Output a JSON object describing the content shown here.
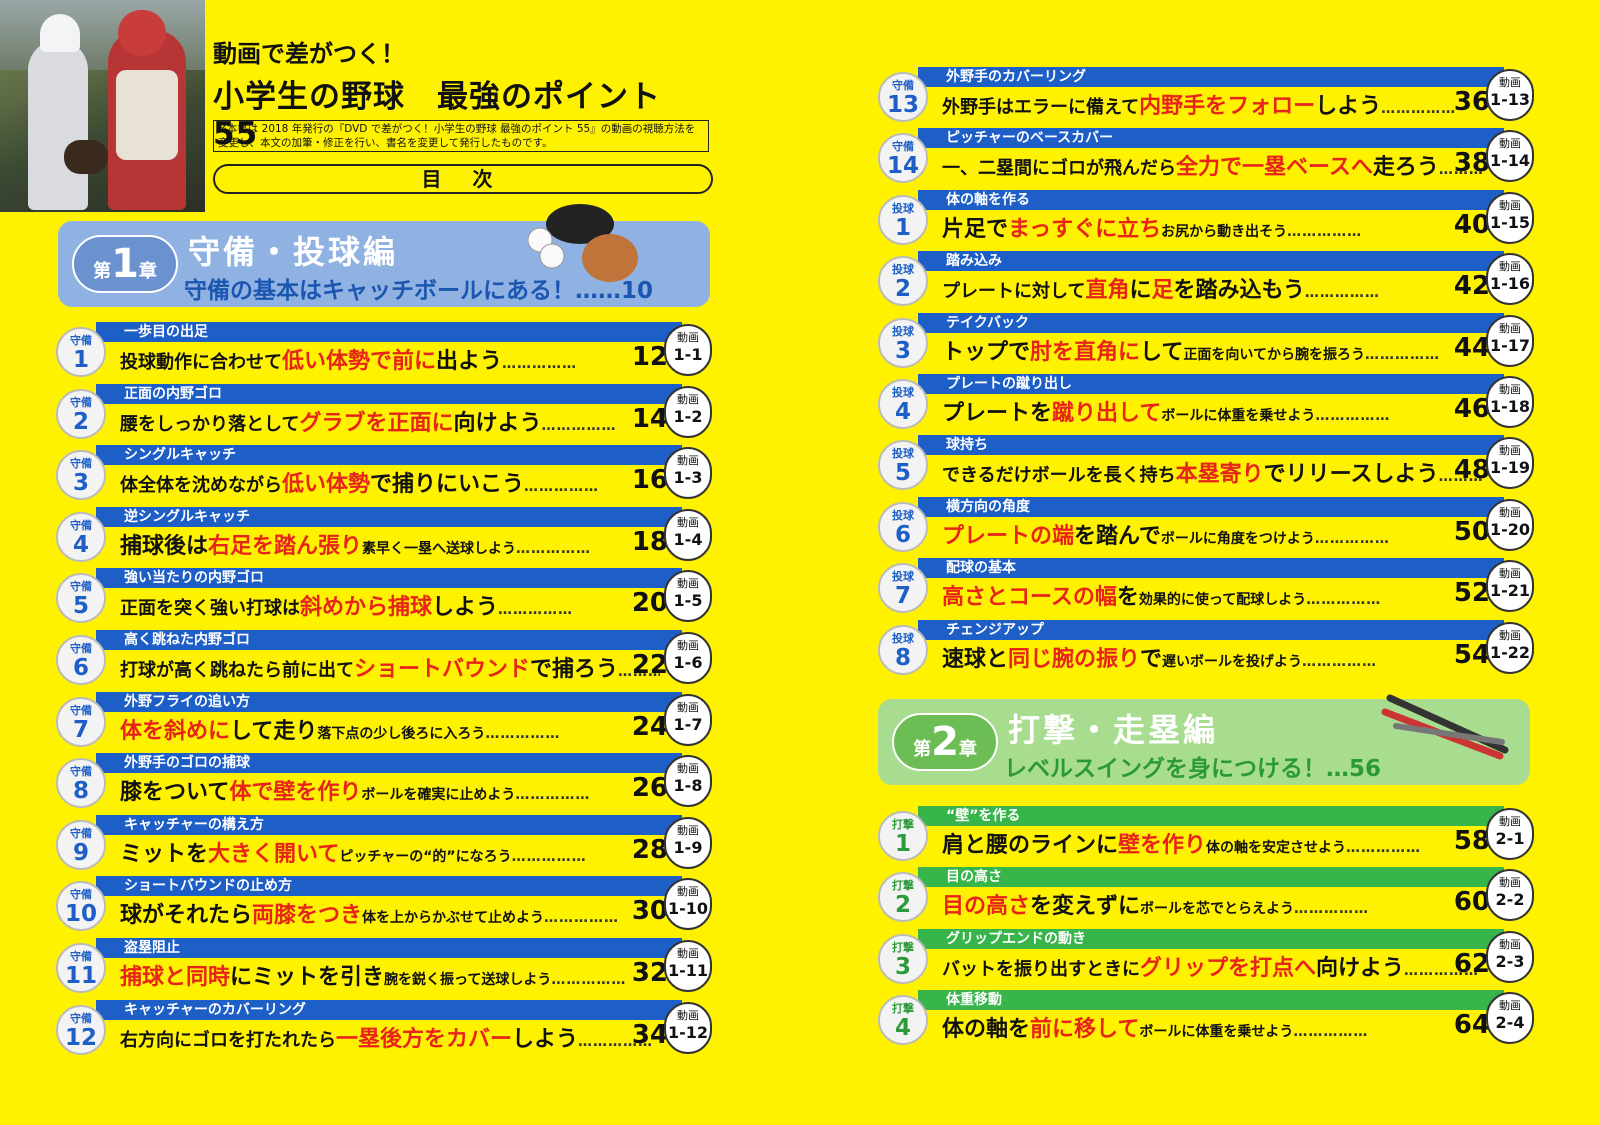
{
  "header": {
    "subtitle": "動画で差がつく！",
    "title": "小学生の野球　最強のポイント 55",
    "note": "※本書は 2018 年発行の『DVD で差がつく！小学生の野球 最強のポイント 55』の動画の視聴方法を変更し、本文の加筆・修正を行い、書名を変更して発行したものです。",
    "toc_label": "目 次"
  },
  "chapters": [
    {
      "badge_pre": "第",
      "badge_num": "1",
      "badge_post": "章",
      "title": "守備・投球編",
      "subtitle": "守備の基本はキャッチボールにある！……10"
    },
    {
      "badge_pre": "第",
      "badge_num": "2",
      "badge_post": "章",
      "title": "打撃・走塁編",
      "subtitle": "レベルスイングを身につける！…56"
    }
  ],
  "video_label": "動画",
  "left_entries": [
    {
      "cat": "守備",
      "num": "1",
      "head": "一歩目の出足",
      "parts": [
        "投球動作に合わせて",
        "低い体勢で前に",
        "出よう",
        "",
        "",
        "",
        ""
      ],
      "page": "12",
      "video": "1-1"
    },
    {
      "cat": "守備",
      "num": "2",
      "head": "正面の内野ゴロ",
      "parts": [
        "腰をしっかり落として",
        "グラブを正面に",
        "向けよう",
        "",
        "",
        "",
        ""
      ],
      "page": "14",
      "video": "1-2"
    },
    {
      "cat": "守備",
      "num": "3",
      "head": "シングルキャッチ",
      "parts": [
        "体全体を沈めながら",
        "低い体勢",
        "で捕りにいこう",
        "",
        "",
        "",
        ""
      ],
      "page": "16",
      "video": "1-3"
    },
    {
      "cat": "守備",
      "num": "4",
      "head": "逆シングルキャッチ",
      "parts": [
        "",
        "",
        "捕球後は",
        "",
        "右足を踏ん張り",
        "",
        "素早く一塁へ送球しよう"
      ],
      "page": "18",
      "video": "1-4"
    },
    {
      "cat": "守備",
      "num": "5",
      "head": "強い当たりの内野ゴロ",
      "parts": [
        "正面を突く強い打球は",
        "斜めから捕球",
        "しよう",
        "",
        "",
        "",
        ""
      ],
      "page": "20",
      "video": "1-5"
    },
    {
      "cat": "守備",
      "num": "6",
      "head": "高く跳ねた内野ゴロ",
      "parts": [
        "打球が高く跳ねたら前に出て",
        "ショートバウンド",
        "で捕ろう",
        "",
        "",
        "",
        ""
      ],
      "page": "22",
      "video": "1-6"
    },
    {
      "cat": "守備",
      "num": "7",
      "head": "外野フライの追い方",
      "parts": [
        "",
        "体を斜めに",
        "して走り",
        "落下点の少し後ろに入ろう",
        "",
        "",
        ""
      ],
      "page": "24",
      "video": "1-7"
    },
    {
      "cat": "守備",
      "num": "8",
      "head": "外野手のゴロの捕球",
      "parts": [
        "",
        "",
        "膝をついて",
        "",
        "体で壁を作り",
        "",
        "ボールを確実に止めよう"
      ],
      "page": "26",
      "video": "1-8"
    },
    {
      "cat": "守備",
      "num": "9",
      "head": "キャッチャーの構え方",
      "parts": [
        "",
        "",
        "ミットを",
        "",
        "大きく開いて",
        "",
        "ピッチャーの“的”になろう"
      ],
      "page": "28",
      "video": "1-9"
    },
    {
      "cat": "守備",
      "num": "10",
      "head": "ショートバウンドの止め方",
      "parts": [
        "",
        "",
        "球がそれたら",
        "",
        "両膝をつき",
        "",
        "体を上からかぶせて止めよう"
      ],
      "page": "30",
      "video": "1-10"
    },
    {
      "cat": "守備",
      "num": "11",
      "head": "盗塁阻止",
      "parts": [
        "",
        "捕球と同時",
        "にミットを引き",
        "腕を鋭く振って送球しよう",
        "",
        "",
        ""
      ],
      "page": "32",
      "video": "1-11"
    },
    {
      "cat": "守備",
      "num": "12",
      "head": "キャッチャーのカバーリング",
      "parts": [
        "右方向にゴロを打たれたら",
        "一塁後方をカバー",
        "しよう",
        "",
        "",
        "",
        ""
      ],
      "page": "34",
      "video": "1-12"
    }
  ],
  "right_entries": [
    {
      "cat": "守備",
      "num": "13",
      "head": "外野手のカバーリング",
      "parts": [
        "外野手はエラーに備えて",
        "内野手をフォロー",
        "しよう",
        "",
        "",
        "",
        ""
      ],
      "page": "36",
      "video": "1-13"
    },
    {
      "cat": "守備",
      "num": "14",
      "head": "ピッチャーのベースカバー",
      "parts": [
        "一、二塁間にゴロが飛んだら",
        "全力で一塁ベースへ",
        "走ろう",
        "",
        "",
        "",
        ""
      ],
      "page": "38",
      "video": "1-14"
    },
    {
      "cat": "投球",
      "num": "1",
      "head": "体の軸を作る",
      "parts": [
        "",
        "",
        "片足で",
        "",
        "まっすぐに立ち",
        "",
        "お尻から動き出そう"
      ],
      "page": "40",
      "video": "1-15"
    },
    {
      "cat": "投球",
      "num": "2",
      "head": "踏み込み",
      "parts": [
        "プレートに対して",
        "直角",
        "に",
        "",
        "足",
        "を踏み込もう",
        ""
      ],
      "page": "42",
      "video": "1-16"
    },
    {
      "cat": "投球",
      "num": "3",
      "head": "テイクバック",
      "parts": [
        "",
        "",
        "トップで",
        "",
        "肘を直角に",
        "して",
        "正面を向いてから腕を振ろう"
      ],
      "page": "44",
      "video": "1-17"
    },
    {
      "cat": "投球",
      "num": "4",
      "head": "プレートの蹴り出し",
      "parts": [
        "",
        "",
        "プレートを",
        "",
        "蹴り出して",
        "",
        "ボールに体重を乗せよう"
      ],
      "page": "46",
      "video": "1-18"
    },
    {
      "cat": "投球",
      "num": "5",
      "head": "球持ち",
      "parts": [
        "できるだけボールを長く持ち",
        "本塁寄り",
        "でリリースしよう",
        "",
        "",
        "",
        ""
      ],
      "page": "48",
      "video": "1-19"
    },
    {
      "cat": "投球",
      "num": "6",
      "head": "横方向の角度",
      "parts": [
        "",
        "プレートの端",
        "を踏んで",
        "ボールに角度をつけよう",
        "",
        "",
        ""
      ],
      "page": "50",
      "video": "1-20"
    },
    {
      "cat": "投球",
      "num": "7",
      "head": "配球の基本",
      "parts": [
        "",
        "高さとコースの幅",
        "を",
        "効果的に使って配球しよう",
        "",
        "",
        ""
      ],
      "page": "52",
      "video": "1-21"
    },
    {
      "cat": "投球",
      "num": "8",
      "head": "チェンジアップ",
      "parts": [
        "",
        "",
        "速球と",
        "",
        "同じ腕の振り",
        "で",
        "遅いボールを投げよう"
      ],
      "page": "54",
      "video": "1-22"
    },
    {
      "cat": "打撃",
      "num": "1",
      "head": "“壁”を作る",
      "parts": [
        "",
        "",
        "肩と腰のラインに",
        "",
        "壁を作り",
        "",
        "体の軸を安定させよう"
      ],
      "page": "58",
      "video": "2-1"
    },
    {
      "cat": "打撃",
      "num": "2",
      "head": "目の高さ",
      "parts": [
        "",
        "目の高さ",
        "を変えずに",
        "ボールを芯でとらえよう",
        "",
        "",
        ""
      ],
      "page": "60",
      "video": "2-2"
    },
    {
      "cat": "打撃",
      "num": "3",
      "head": "グリップエンドの動き",
      "parts": [
        "バットを振り出すときに",
        "グリップを打点へ",
        "向けよう",
        "",
        "",
        "",
        ""
      ],
      "page": "62",
      "video": "2-3"
    },
    {
      "cat": "打撃",
      "num": "4",
      "head": "体重移動",
      "parts": [
        "",
        "",
        "体の軸を",
        "",
        "前に移して",
        "",
        "ボールに体重を乗せよう"
      ],
      "page": "64",
      "video": "2-4"
    }
  ]
}
